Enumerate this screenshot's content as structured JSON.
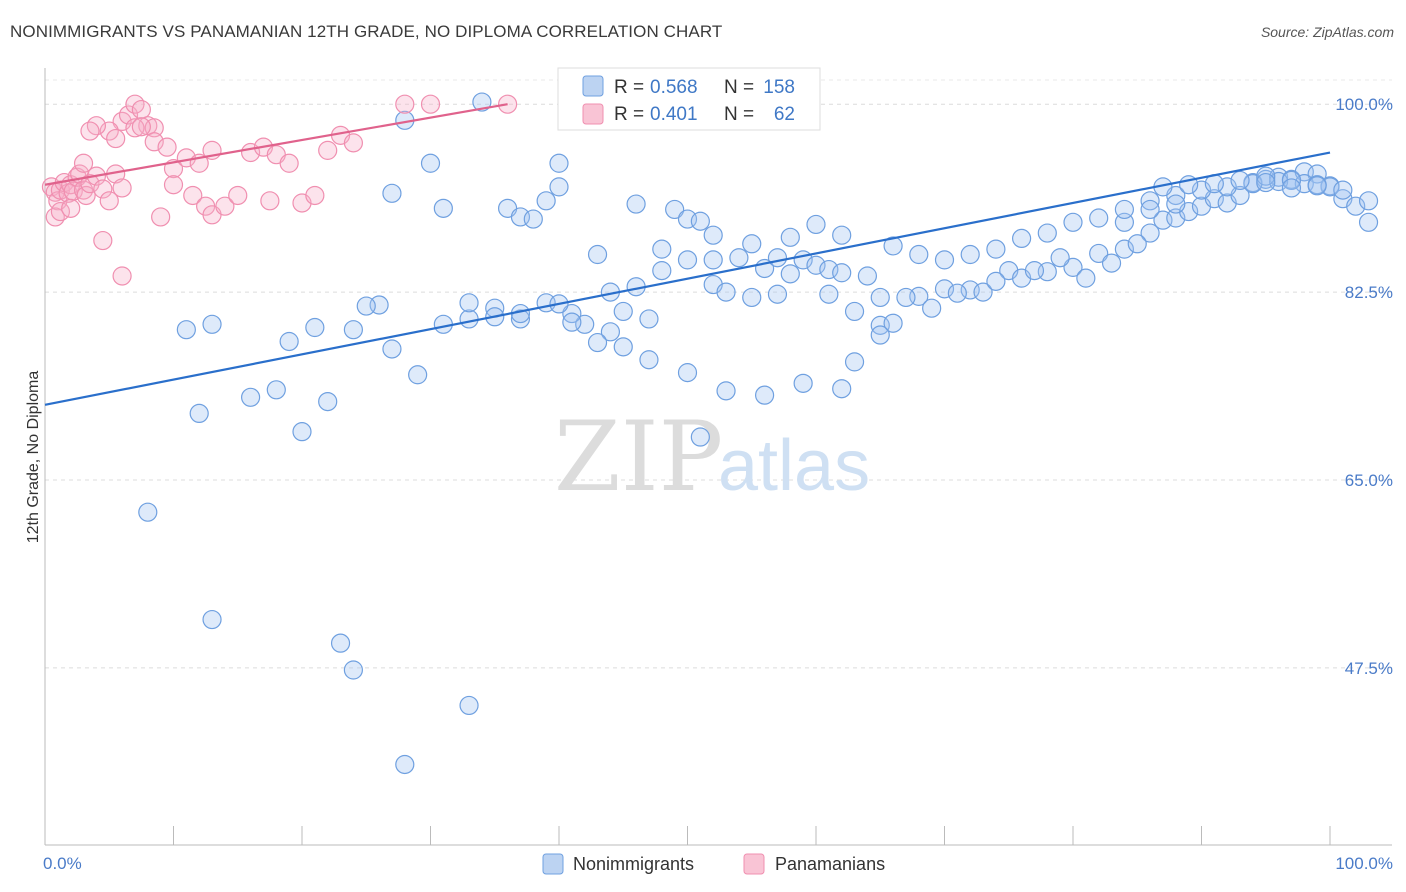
{
  "title": "NONIMMIGRANTS VS PANAMANIAN 12TH GRADE, NO DIPLOMA CORRELATION CHART",
  "source": "Source: ZipAtlas.com",
  "watermark": {
    "zip": "ZIP",
    "atlas": "atlas"
  },
  "colors": {
    "blue": "#6fa0e0",
    "blue_line": "#2a6fcb",
    "pink": "#f08fb0",
    "pink_line": "#e0628c"
  },
  "legend": {
    "r_label": "R =",
    "n_label": "N =",
    "rows": [
      {
        "r": "0.568",
        "n": "158"
      },
      {
        "r": "0.401",
        "n": "62"
      }
    ]
  },
  "bottom_legend": [
    "Nonimmigrants",
    "Panamanians"
  ],
  "chart_data": {
    "type": "scatter",
    "title": "NONIMMIGRANTS VS PANAMANIAN 12TH GRADE, NO DIPLOMA CORRELATION CHART",
    "xlabel": "",
    "ylabel": "12th Grade, No Diploma",
    "xlim": [
      0,
      100
    ],
    "ylim": [
      31,
      103
    ],
    "x_tick_labels": [
      "0.0%",
      "100.0%"
    ],
    "y_ticks": [
      47.5,
      65.0,
      82.5,
      100.0
    ],
    "y_tick_labels": [
      "47.5%",
      "65.0%",
      "82.5%",
      "100.0%"
    ],
    "grid": true,
    "legend_position": "top-center",
    "series": [
      {
        "name": "Nonimmigrants",
        "color": "#6fa0e0",
        "trend": {
          "x": [
            0,
            100
          ],
          "y": [
            72.0,
            95.5
          ]
        },
        "points": [
          [
            34,
            100.2
          ],
          [
            28,
            98.5
          ],
          [
            40,
            94.5
          ],
          [
            30,
            94.5
          ],
          [
            27,
            91.7
          ],
          [
            31,
            90.3
          ],
          [
            36,
            90.3
          ],
          [
            37,
            89.5
          ],
          [
            38,
            89.3
          ],
          [
            39,
            91.0
          ],
          [
            40,
            92.3
          ],
          [
            46,
            90.7
          ],
          [
            49,
            90.2
          ],
          [
            50,
            89.3
          ],
          [
            51,
            89.1
          ],
          [
            52,
            87.8
          ],
          [
            48,
            86.5
          ],
          [
            43,
            86.0
          ],
          [
            50,
            85.5
          ],
          [
            54,
            85.7
          ],
          [
            56,
            84.7
          ],
          [
            57,
            85.7
          ],
          [
            59,
            85.5
          ],
          [
            60,
            85.0
          ],
          [
            61,
            84.6
          ],
          [
            52,
            83.2
          ],
          [
            53,
            82.5
          ],
          [
            57,
            82.3
          ],
          [
            61,
            82.3
          ],
          [
            63,
            80.7
          ],
          [
            65,
            79.4
          ],
          [
            66,
            79.6
          ],
          [
            65,
            82.0
          ],
          [
            68,
            82.1
          ],
          [
            70,
            82.8
          ],
          [
            72,
            82.7
          ],
          [
            73,
            82.5
          ],
          [
            75,
            84.5
          ],
          [
            76,
            83.8
          ],
          [
            78,
            84.4
          ],
          [
            80,
            84.8
          ],
          [
            81,
            83.8
          ],
          [
            82,
            86.1
          ],
          [
            84,
            86.5
          ],
          [
            84,
            89.0
          ],
          [
            86,
            88.0
          ],
          [
            87,
            89.2
          ],
          [
            88,
            89.4
          ],
          [
            89,
            90.0
          ],
          [
            90,
            90.5
          ],
          [
            91,
            91.2
          ],
          [
            92,
            90.8
          ],
          [
            93,
            91.5
          ],
          [
            94,
            92.7
          ],
          [
            95,
            93.0
          ],
          [
            96,
            93.2
          ],
          [
            97,
            93.0
          ],
          [
            98,
            93.7
          ],
          [
            99,
            93.5
          ],
          [
            100,
            92.4
          ],
          [
            101,
            91.2
          ],
          [
            102,
            90.5
          ],
          [
            103,
            89.0
          ],
          [
            85,
            87.0
          ],
          [
            83,
            85.2
          ],
          [
            79,
            85.7
          ],
          [
            77,
            84.5
          ],
          [
            74,
            83.5
          ],
          [
            71,
            82.4
          ],
          [
            69,
            81.0
          ],
          [
            67,
            82.0
          ],
          [
            64,
            84.0
          ],
          [
            62,
            84.3
          ],
          [
            58,
            84.2
          ],
          [
            55,
            82.0
          ],
          [
            47,
            80.0
          ],
          [
            45,
            80.7
          ],
          [
            44,
            78.8
          ],
          [
            42,
            79.5
          ],
          [
            41,
            80.5
          ],
          [
            33,
            80.0
          ],
          [
            31,
            79.5
          ],
          [
            26,
            81.3
          ],
          [
            25,
            81.2
          ],
          [
            24,
            79.0
          ],
          [
            21,
            79.2
          ],
          [
            19,
            77.9
          ],
          [
            11,
            79.0
          ],
          [
            12,
            71.2
          ],
          [
            13,
            79.5
          ],
          [
            16,
            72.7
          ],
          [
            18,
            73.4
          ],
          [
            20,
            69.5
          ],
          [
            22,
            72.3
          ],
          [
            27,
            77.2
          ],
          [
            29,
            74.8
          ],
          [
            35,
            81.0
          ],
          [
            37,
            80.0
          ],
          [
            39,
            81.5
          ],
          [
            41,
            79.7
          ],
          [
            43,
            77.8
          ],
          [
            45,
            77.4
          ],
          [
            47,
            76.2
          ],
          [
            50,
            75.0
          ],
          [
            53,
            73.3
          ],
          [
            56,
            72.9
          ],
          [
            59,
            74.0
          ],
          [
            62,
            73.5
          ],
          [
            63,
            76.0
          ],
          [
            65,
            78.5
          ],
          [
            35,
            80.2
          ],
          [
            8,
            62.0
          ],
          [
            13,
            52.0
          ],
          [
            23,
            49.8
          ],
          [
            24,
            47.3
          ],
          [
            33,
            44.0
          ],
          [
            28,
            38.5
          ],
          [
            51,
            69.0
          ],
          [
            33,
            81.5
          ],
          [
            37,
            80.5
          ],
          [
            40,
            81.4
          ],
          [
            44,
            82.5
          ],
          [
            46,
            83.0
          ],
          [
            48,
            84.5
          ],
          [
            52,
            85.5
          ],
          [
            55,
            87.0
          ],
          [
            58,
            87.6
          ],
          [
            60,
            88.8
          ],
          [
            62,
            87.8
          ],
          [
            66,
            86.8
          ],
          [
            68,
            86.0
          ],
          [
            70,
            85.5
          ],
          [
            72,
            86.0
          ],
          [
            74,
            86.5
          ],
          [
            76,
            87.5
          ],
          [
            78,
            88.0
          ],
          [
            80,
            89.0
          ],
          [
            82,
            89.4
          ],
          [
            84,
            90.2
          ],
          [
            86,
            91.0
          ],
          [
            88,
            91.5
          ],
          [
            90,
            92.0
          ],
          [
            92,
            92.3
          ],
          [
            94,
            92.6
          ],
          [
            96,
            92.8
          ],
          [
            98,
            92.6
          ],
          [
            100,
            92.3
          ],
          [
            95,
            93.3
          ],
          [
            97,
            92.9
          ],
          [
            99,
            92.5
          ],
          [
            101,
            92.0
          ],
          [
            103,
            91.0
          ],
          [
            87,
            92.3
          ],
          [
            89,
            92.5
          ],
          [
            91,
            92.6
          ],
          [
            93,
            92.9
          ],
          [
            95,
            92.7
          ],
          [
            97,
            92.2
          ],
          [
            99,
            92.4
          ],
          [
            86,
            90.2
          ],
          [
            88,
            90.7
          ]
        ]
      },
      {
        "name": "Panamanians",
        "color": "#f08fb0",
        "trend": {
          "x": [
            0,
            36
          ],
          "y": [
            92.5,
            100.0
          ]
        },
        "points": [
          [
            0.5,
            92.3
          ],
          [
            0.8,
            91.8
          ],
          [
            1.0,
            91.0
          ],
          [
            1.2,
            92.0
          ],
          [
            1.5,
            92.7
          ],
          [
            1.8,
            91.7
          ],
          [
            2.0,
            92.5
          ],
          [
            2.2,
            91.9
          ],
          [
            2.5,
            93.2
          ],
          [
            2.7,
            93.5
          ],
          [
            3.0,
            92.0
          ],
          [
            3.2,
            91.5
          ],
          [
            3.5,
            92.6
          ],
          [
            4.0,
            93.3
          ],
          [
            4.5,
            92.1
          ],
          [
            5.0,
            91.0
          ],
          [
            5.5,
            93.5
          ],
          [
            6.0,
            92.2
          ],
          [
            0.8,
            89.5
          ],
          [
            1.2,
            90.0
          ],
          [
            2.0,
            90.3
          ],
          [
            3.0,
            94.5
          ],
          [
            4.5,
            87.3
          ],
          [
            6.0,
            98.4
          ],
          [
            6.5,
            99.0
          ],
          [
            7.0,
            100.0
          ],
          [
            7.5,
            99.5
          ],
          [
            8.0,
            98.0
          ],
          [
            8.5,
            97.8
          ],
          [
            5.0,
            97.5
          ],
          [
            4.0,
            98.0
          ],
          [
            3.5,
            97.5
          ],
          [
            5.5,
            96.8
          ],
          [
            7.0,
            97.8
          ],
          [
            7.5,
            97.9
          ],
          [
            8.5,
            96.5
          ],
          [
            9.5,
            96.0
          ],
          [
            10.0,
            94.0
          ],
          [
            11.0,
            95.0
          ],
          [
            12.0,
            94.5
          ],
          [
            13.0,
            95.7
          ],
          [
            10.0,
            92.5
          ],
          [
            11.5,
            91.5
          ],
          [
            12.5,
            90.5
          ],
          [
            13.0,
            89.7
          ],
          [
            14.0,
            90.5
          ],
          [
            15.0,
            91.5
          ],
          [
            16.0,
            95.5
          ],
          [
            17.0,
            96.0
          ],
          [
            18.0,
            95.3
          ],
          [
            19.0,
            94.5
          ],
          [
            17.5,
            91.0
          ],
          [
            20.0,
            90.8
          ],
          [
            21.0,
            91.5
          ],
          [
            22.0,
            95.7
          ],
          [
            23.0,
            97.1
          ],
          [
            24.0,
            96.4
          ],
          [
            28.0,
            100.0
          ],
          [
            30.0,
            100.0
          ],
          [
            36.0,
            100.0
          ],
          [
            6.0,
            84.0
          ],
          [
            9.0,
            89.5
          ]
        ]
      }
    ]
  }
}
